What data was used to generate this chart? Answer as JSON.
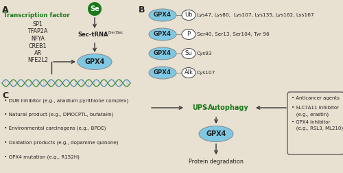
{
  "bg_color": "#e8e0d0",
  "panel_a": {
    "label": "A",
    "tf_title": "Transcription factor",
    "tf_title_color": "#1a7a1a",
    "tf_list": [
      "SP1",
      "TFAP2A",
      "NFYA",
      "CREB1",
      "AR",
      "NFE2L2"
    ],
    "se_label": "Se",
    "se_bg": "#1a7a1a",
    "sec_trna_text": "Sec-tRNA",
    "sec_trna_super": "[Ser]Sec",
    "gpx4_color": "#7ec8e3"
  },
  "panel_b": {
    "label": "B",
    "rows": [
      {
        "mod": "Ub",
        "sites": "Lys47, Lys80,  Lys107, Lys135, Lys162, Lys167"
      },
      {
        "mod": "P",
        "sites": "Ser40, Ser13, Ser104, Tyr 96"
      },
      {
        "mod": "Su",
        "sites": "Cys93"
      },
      {
        "mod": "Alk",
        "sites": "Cys107"
      }
    ],
    "gpx4_color": "#7ec8e3"
  },
  "panel_c": {
    "label": "C",
    "left_bullets": [
      "• DUB inhibitor (e.g., alladium pyrithione complex)",
      "• Natural product (e.g., DMOCPTL, bufatalin)",
      "• Environmental carcinogens (e.g., BPDE)",
      "• Oxidation products (e.g., dopamine quinone)",
      "• GPX4 mutation (e.g., R152H)"
    ],
    "ups_label": "UPS",
    "ups_color": "#1a7a1a",
    "autophagy_label": "Autophagy",
    "autophagy_color": "#1a7a1a",
    "gpx4_label": "GPX4",
    "gpx4_color": "#7ec8e3",
    "protein_deg": "Protein degradation",
    "right_bullets": [
      "• Anticancer agents",
      "• SLC7A11 inhibitor",
      "   (e.g., erastin)",
      "• GPX4 inhibitor",
      "   (e.g., RSL3, ML210)"
    ]
  }
}
